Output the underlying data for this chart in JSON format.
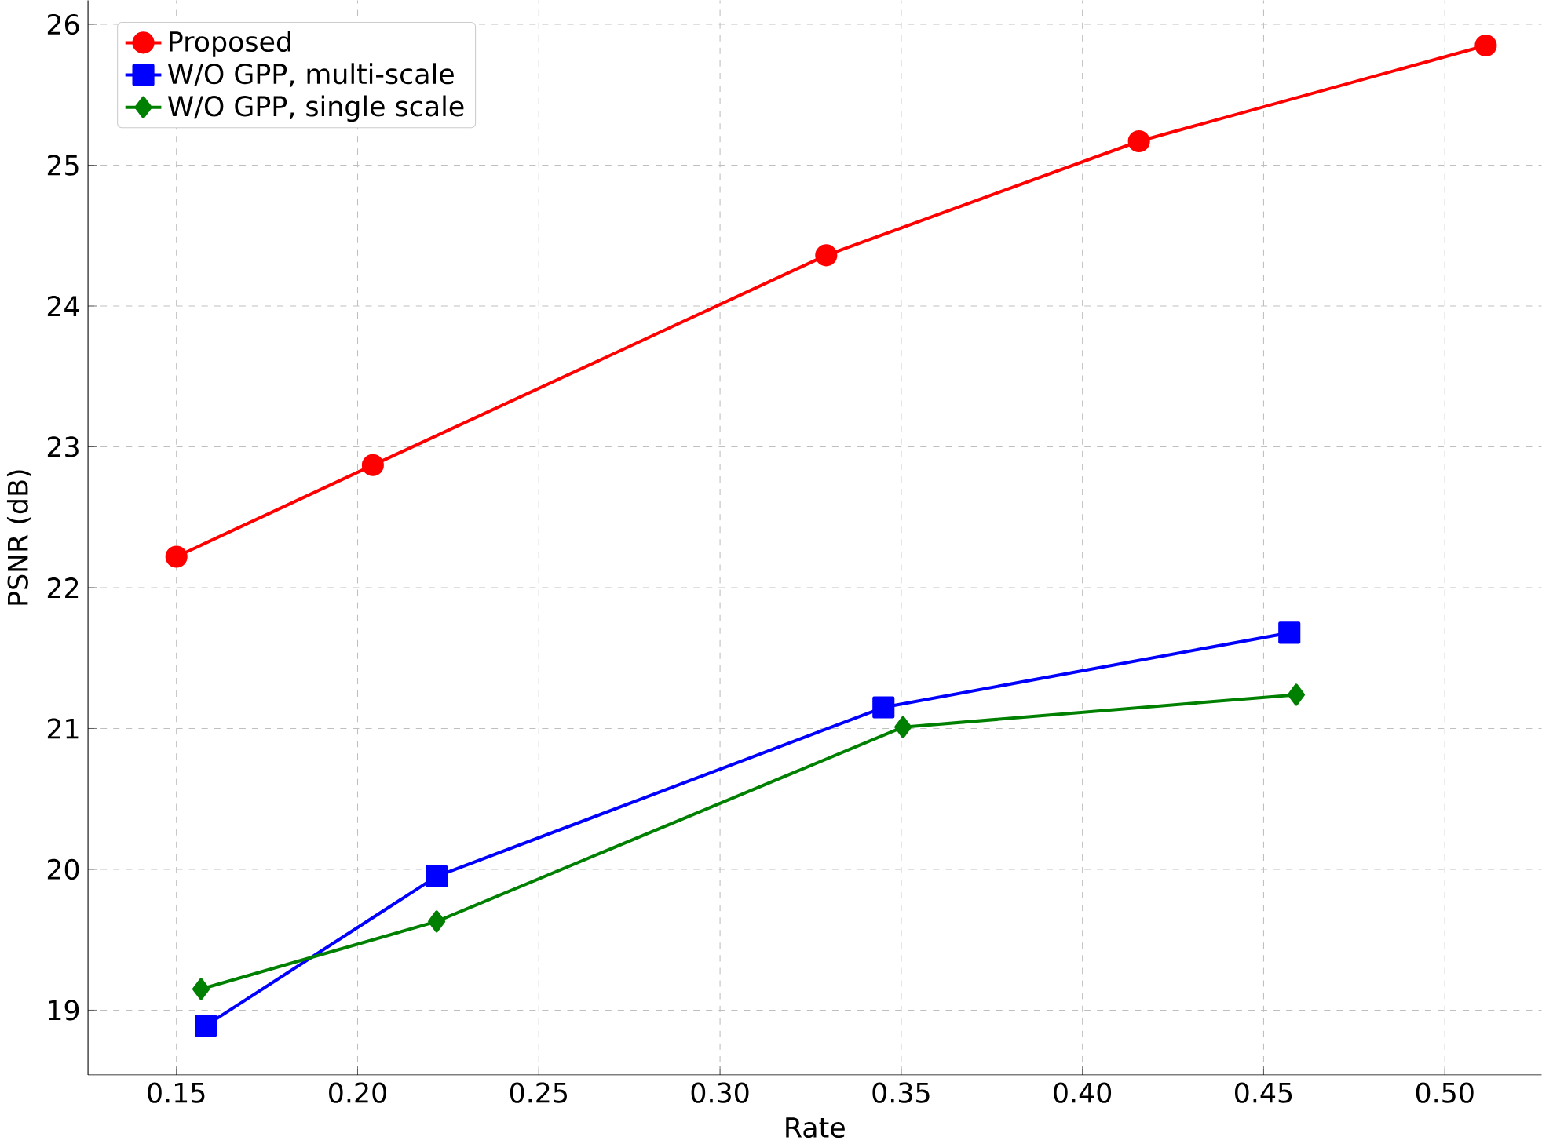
{
  "chart_data": {
    "type": "line",
    "xlabel": "Rate",
    "ylabel": "PSNR (dB)",
    "xlim": [
      0.1256,
      0.5267
    ],
    "ylim": [
      18.54,
      26.17
    ],
    "xticks": [
      {
        "value": 0.15,
        "label": "0.15"
      },
      {
        "value": 0.2,
        "label": "0.20"
      },
      {
        "value": 0.25,
        "label": "0.25"
      },
      {
        "value": 0.3,
        "label": "0.30"
      },
      {
        "value": 0.35,
        "label": "0.35"
      },
      {
        "value": 0.4,
        "label": "0.40"
      },
      {
        "value": 0.45,
        "label": "0.45"
      },
      {
        "value": 0.5,
        "label": "0.50"
      }
    ],
    "yticks": [
      19,
      20,
      21,
      22,
      23,
      24,
      25,
      26
    ],
    "grid": true,
    "legend": "top left",
    "line_style": "solid",
    "series": [
      {
        "name": "Proposed",
        "color": "#ff0000",
        "marker": "circle",
        "x": [
          0.15,
          0.2042,
          0.3293,
          0.4156,
          0.5113
        ],
        "values": [
          22.22,
          22.87,
          24.36,
          25.17,
          25.85
        ]
      },
      {
        "name": "W/O GPP, multi-scale",
        "color": "#0000ff",
        "marker": "square",
        "x": [
          0.1581,
          0.2218,
          0.3451,
          0.4571
        ],
        "values": [
          18.89,
          19.95,
          21.15,
          21.68
        ]
      },
      {
        "name": "W/O GPP, single scale",
        "color": "#008000",
        "marker": "diamond",
        "x": [
          0.1568,
          0.2218,
          0.3505,
          0.459
        ],
        "values": [
          19.15,
          19.63,
          21.01,
          21.24
        ]
      }
    ]
  }
}
